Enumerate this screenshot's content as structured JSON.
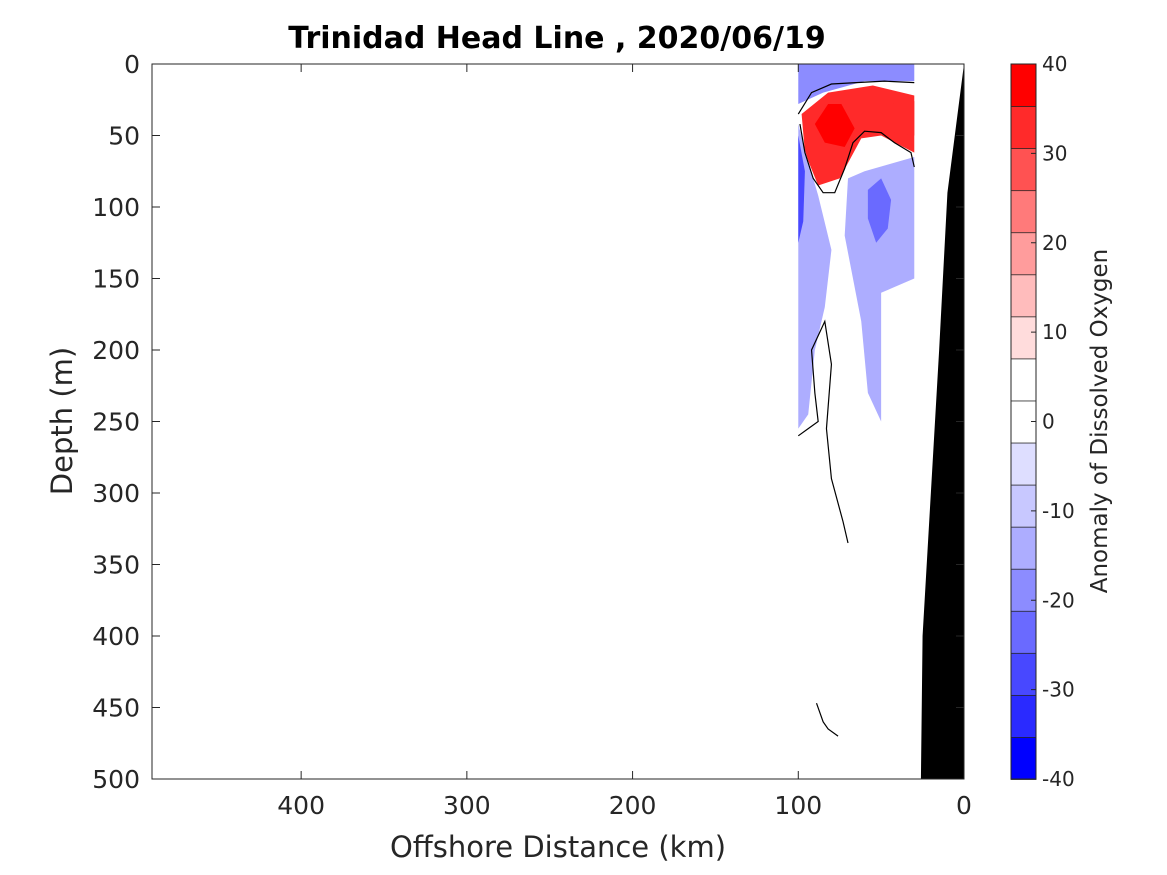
{
  "chart_data": {
    "type": "heatmap",
    "title": "Trinidad Head Line , 2020/06/19",
    "xlabel": "Offshore Distance (km)",
    "ylabel": "Depth (m)",
    "colorbar_label": "Anomaly of Dissolved Oxygen",
    "xlim": [
      490,
      0
    ],
    "ylim": [
      500,
      0
    ],
    "x_reversed": true,
    "y_reversed": true,
    "x_ticks": [
      400,
      300,
      200,
      100,
      0
    ],
    "y_ticks": [
      0,
      50,
      100,
      150,
      200,
      250,
      300,
      350,
      400,
      450,
      500
    ],
    "colorbar": {
      "min": -40,
      "max": 40,
      "ticks": [
        40,
        30,
        20,
        10,
        0,
        -10,
        -20,
        -30,
        -40
      ],
      "levels": [
        -40,
        -35,
        -30,
        -25,
        -20,
        -15,
        -10,
        -5,
        0,
        5,
        10,
        15,
        20,
        25,
        30,
        35,
        40
      ],
      "colors": [
        "#0000ff",
        "#2a2aff",
        "#4848ff",
        "#6a6aff",
        "#8c8cff",
        "#adadff",
        "#c8c8ff",
        "#dedeff",
        "#ffffff",
        "#ffffff",
        "#ffdcdc",
        "#ffbcbc",
        "#ff9c9c",
        "#ff7a7a",
        "#ff5252",
        "#ff2a2a",
        "#ff0000"
      ]
    },
    "data_extent": {
      "x_range": [
        100,
        30
      ],
      "depth_range": [
        0,
        250
      ]
    },
    "regions": [
      {
        "name": "surface-negative",
        "value": -20,
        "polygon": [
          [
            100,
            0
          ],
          [
            30,
            0
          ],
          [
            30,
            12
          ],
          [
            60,
            12
          ],
          [
            85,
            20
          ],
          [
            100,
            28
          ]
        ]
      },
      {
        "name": "subsurface-positive-core",
        "value": 35,
        "polygon": [
          [
            98,
            35
          ],
          [
            82,
            20
          ],
          [
            55,
            15
          ],
          [
            30,
            22
          ],
          [
            30,
            62
          ],
          [
            50,
            50
          ],
          [
            62,
            52
          ],
          [
            75,
            80
          ],
          [
            88,
            85
          ],
          [
            96,
            62
          ]
        ]
      },
      {
        "name": "positive-inner",
        "value": 40,
        "polygon": [
          [
            90,
            42
          ],
          [
            82,
            28
          ],
          [
            74,
            28
          ],
          [
            66,
            45
          ],
          [
            72,
            58
          ],
          [
            84,
            55
          ]
        ]
      },
      {
        "name": "positive-nearshore",
        "value": 38,
        "polygon": [
          [
            45,
            28
          ],
          [
            30,
            26
          ],
          [
            30,
            50
          ],
          [
            42,
            48
          ]
        ]
      },
      {
        "name": "offshore-negative-column",
        "value": -15,
        "polygon": [
          [
            100,
            42
          ],
          [
            96,
            60
          ],
          [
            88,
            92
          ],
          [
            80,
            130
          ],
          [
            84,
            170
          ],
          [
            90,
            200
          ],
          [
            94,
            245
          ],
          [
            100,
            255
          ]
        ]
      },
      {
        "name": "offshore-negative-core",
        "value": -28,
        "polygon": [
          [
            100,
            50
          ],
          [
            96,
            75
          ],
          [
            97,
            110
          ],
          [
            100,
            125
          ]
        ]
      },
      {
        "name": "nearshore-negative-column",
        "value": -12,
        "polygon": [
          [
            70,
            80
          ],
          [
            60,
            75
          ],
          [
            45,
            70
          ],
          [
            30,
            65
          ],
          [
            30,
            150
          ],
          [
            50,
            160
          ],
          [
            50,
            250
          ],
          [
            58,
            230
          ],
          [
            62,
            180
          ],
          [
            72,
            120
          ]
        ]
      },
      {
        "name": "nearshore-negative-core",
        "value": -25,
        "polygon": [
          [
            58,
            88
          ],
          [
            50,
            80
          ],
          [
            44,
            95
          ],
          [
            46,
            115
          ],
          [
            53,
            125
          ],
          [
            58,
            108
          ]
        ]
      },
      {
        "name": "deep-positive-patch",
        "value": 8,
        "polygon": [
          [
            100,
            312
          ],
          [
            89,
            316
          ],
          [
            89,
            333
          ],
          [
            100,
            336
          ]
        ]
      }
    ],
    "zero_contours": [
      [
        [
          100,
          35
        ],
        [
          92,
          20
        ],
        [
          80,
          14
        ],
        [
          65,
          13
        ],
        [
          48,
          12
        ],
        [
          30,
          13
        ]
      ],
      [
        [
          30,
          72
        ],
        [
          32,
          62
        ],
        [
          42,
          55
        ],
        [
          50,
          48
        ],
        [
          60,
          47
        ],
        [
          67,
          55
        ],
        [
          72,
          73
        ],
        [
          78,
          90
        ],
        [
          85,
          90
        ],
        [
          91,
          80
        ],
        [
          96,
          62
        ],
        [
          99,
          42
        ]
      ],
      [
        [
          100,
          260
        ],
        [
          94,
          255
        ],
        [
          88,
          250
        ],
        [
          90,
          230
        ],
        [
          92,
          200
        ],
        [
          84,
          180
        ],
        [
          80,
          210
        ],
        [
          83,
          255
        ],
        [
          80,
          290
        ],
        [
          73,
          320
        ],
        [
          70,
          335
        ]
      ],
      [
        [
          89,
          447
        ],
        [
          85,
          460
        ],
        [
          82,
          465
        ],
        [
          76,
          470
        ]
      ]
    ],
    "bathymetry": {
      "color": "#000000",
      "seafloor": [
        [
          0,
          0
        ],
        [
          10,
          90
        ],
        [
          15,
          200
        ],
        [
          20,
          300
        ],
        [
          25,
          400
        ],
        [
          26,
          500
        ]
      ]
    }
  }
}
